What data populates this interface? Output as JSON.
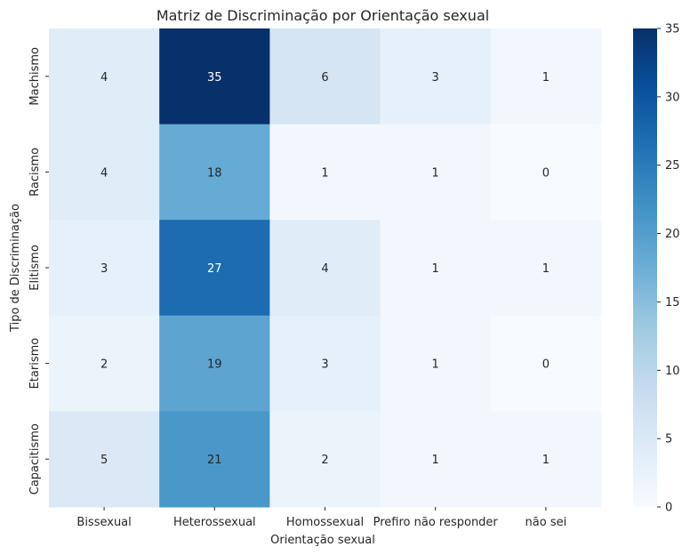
{
  "chart_data": {
    "type": "heatmap",
    "title": "Matriz de Discriminação por Orientação sexual",
    "xlabel": "Orientação sexual",
    "ylabel": "Tipo de Discriminação",
    "x_categories": [
      "Bissexual",
      "Heterossexual",
      "Homossexual",
      "Prefiro não responder",
      "não sei"
    ],
    "y_categories": [
      "Machismo",
      "Racismo",
      "Elitismo",
      "Etarismo",
      "Capacitismo"
    ],
    "values": [
      [
        4,
        35,
        6,
        3,
        1
      ],
      [
        4,
        18,
        1,
        1,
        0
      ],
      [
        3,
        27,
        4,
        1,
        1
      ],
      [
        2,
        19,
        3,
        1,
        0
      ],
      [
        5,
        21,
        2,
        1,
        1
      ]
    ],
    "colorbar": {
      "min": 0,
      "max": 35,
      "ticks": [
        0,
        5,
        10,
        15,
        20,
        25,
        30,
        35
      ]
    },
    "colormap": "Blues",
    "annotate": true,
    "grid": false
  }
}
